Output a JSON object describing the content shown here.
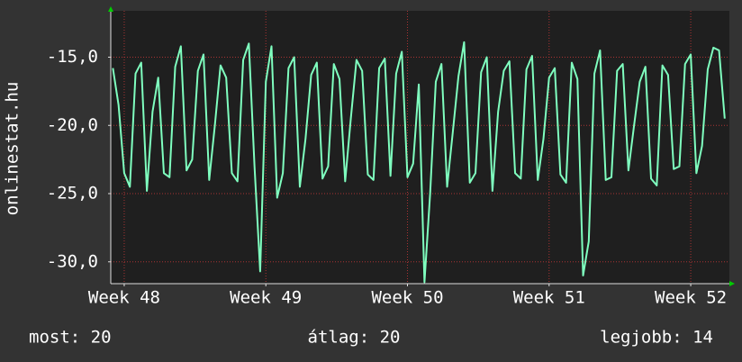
{
  "chart_data": {
    "type": "line",
    "y_label": "onlinestat.hu",
    "x": [
      47.92,
      47.96,
      48.0,
      48.04,
      48.08,
      48.12,
      48.16,
      48.2,
      48.24,
      48.28,
      48.32,
      48.36,
      48.4,
      48.44,
      48.48,
      48.52,
      48.56,
      48.6,
      48.64,
      48.68,
      48.72,
      48.76,
      48.8,
      48.84,
      48.88,
      48.92,
      48.96,
      49.0,
      49.04,
      49.08,
      49.12,
      49.16,
      49.2,
      49.24,
      49.28,
      49.32,
      49.36,
      49.4,
      49.44,
      49.48,
      49.52,
      49.56,
      49.6,
      49.64,
      49.68,
      49.72,
      49.76,
      49.8,
      49.84,
      49.88,
      49.92,
      49.96,
      50.0,
      50.04,
      50.08,
      50.12,
      50.16,
      50.2,
      50.24,
      50.28,
      50.32,
      50.36,
      50.4,
      50.44,
      50.48,
      50.52,
      50.56,
      50.6,
      50.64,
      50.68,
      50.72,
      50.76,
      50.8,
      50.84,
      50.88,
      50.92,
      50.96,
      51.0,
      51.04,
      51.08,
      51.12,
      51.16,
      51.2,
      51.24,
      51.28,
      51.32,
      51.36,
      51.4,
      51.44,
      51.48,
      51.52,
      51.56,
      51.6,
      51.64,
      51.68,
      51.72,
      51.76,
      51.8,
      51.84,
      51.88,
      51.92,
      51.96,
      52.0,
      52.04,
      52.08,
      52.12,
      52.16,
      52.2,
      52.24
    ],
    "values": [
      -15.8,
      -18.5,
      -23.5,
      -24.5,
      -16.2,
      -15.4,
      -24.8,
      -19.0,
      -16.5,
      -23.5,
      -23.8,
      -15.7,
      -14.2,
      -23.3,
      -22.5,
      -16.0,
      -14.8,
      -24.0,
      -20.0,
      -15.6,
      -16.5,
      -23.5,
      -24.1,
      -15.2,
      -14.0,
      -23.0,
      -30.7,
      -16.8,
      -14.2,
      -25.3,
      -23.5,
      -15.8,
      -15.0,
      -24.5,
      -21.0,
      -16.3,
      -15.4,
      -23.9,
      -23.0,
      -15.5,
      -16.6,
      -24.1,
      -19.5,
      -15.2,
      -16.0,
      -23.6,
      -24.0,
      -15.8,
      -15.1,
      -23.7,
      -16.2,
      -14.6,
      -23.8,
      -22.8,
      -17.0,
      -31.5,
      -25.0,
      -16.8,
      -15.5,
      -24.5,
      -20.5,
      -16.4,
      -13.9,
      -24.2,
      -23.5,
      -16.1,
      -15.0,
      -24.8,
      -19.0,
      -16.0,
      -15.3,
      -23.5,
      -23.9,
      -15.9,
      -14.9,
      -24.0,
      -21.0,
      -16.5,
      -15.8,
      -23.6,
      -24.2,
      -15.4,
      -16.6,
      -31.0,
      -28.5,
      -16.2,
      -14.5,
      -24.0,
      -23.8,
      -16.0,
      -15.5,
      -23.3,
      -20.0,
      -16.8,
      -15.7,
      -23.9,
      -24.4,
      -15.6,
      -16.3,
      -23.2,
      -23.0,
      -15.5,
      -14.8,
      -23.5,
      -21.5,
      -15.9,
      -14.3,
      -14.5,
      -19.5
    ],
    "color": "#7fffbf",
    "xlim": [
      47.905,
      52.273
    ],
    "ylim": [
      -31.6,
      -11.6
    ],
    "xticks": [
      {
        "value": 48,
        "label": "Week 48"
      },
      {
        "value": 49,
        "label": "Week 49"
      },
      {
        "value": 50,
        "label": "Week 50"
      },
      {
        "value": 51,
        "label": "Week 51"
      },
      {
        "value": 52,
        "label": "Week 52"
      }
    ],
    "yticks": [
      {
        "value": -15,
        "label": "-15,0"
      },
      {
        "value": -20,
        "label": "-20,0"
      },
      {
        "value": -25,
        "label": "-25,0"
      },
      {
        "value": -30,
        "label": "-30,0"
      }
    ],
    "grid": true,
    "footer": [
      "most: 20",
      "átlag: 20",
      "legjobb: 14"
    ]
  }
}
